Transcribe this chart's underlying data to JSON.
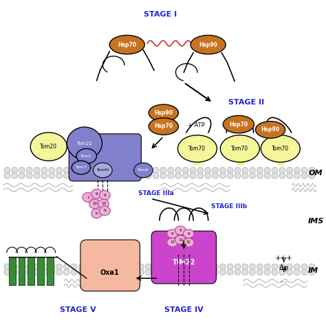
{
  "bg_color": "#ffffff",
  "stage_I_label": "STAGE I",
  "stage_II_label": "STAGE II",
  "stage_IIIa_label": "STAGE IIIa",
  "stage_IIIb_label": "STAGE IIIb",
  "stage_IV_label": "STAGE IV",
  "stage_V_label": "STAGE V",
  "OM_label": "OM",
  "IMS_label": "IMS",
  "IM_label": "IM",
  "ATP_label": "+ ATP",
  "hsp_color": "#c87320",
  "tom_yellow": "#f5f59a",
  "tom_blue": "#8080cc",
  "tim22_color": "#cc44cc",
  "oxa1_color": "#f5b8a0",
  "small_tim_color": "#f0b0d0",
  "small_tim_edge": "#aa44aa",
  "green_color": "#3a8a3a",
  "stage_color": "#2222cc",
  "mem_circle_color": "#e0e0e0",
  "mem_circle_edge": "#aaaaaa"
}
